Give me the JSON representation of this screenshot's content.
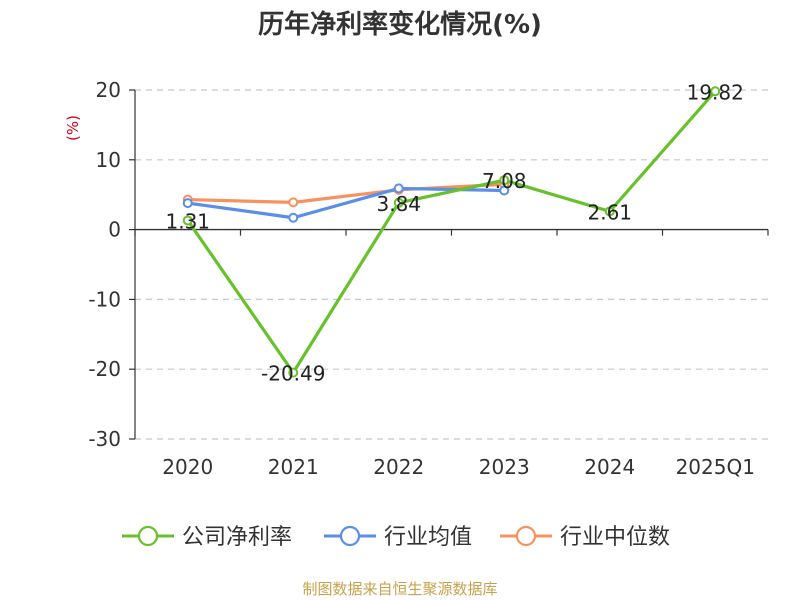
{
  "title": "历年净利率变化情况(%)",
  "source": "制图数据来自恒生聚源数据库",
  "chart_data": {
    "type": "line",
    "title": "历年净利率变化情况(%)",
    "ylabel": "(%)",
    "xlabel": "",
    "categories": [
      "2020",
      "2021",
      "2022",
      "2023",
      "2024",
      "2025Q1"
    ],
    "ylim": [
      -30,
      20
    ],
    "yticks": [
      20,
      10,
      0,
      -10,
      -20,
      -30
    ],
    "grid": true,
    "legend_position": "bottom",
    "series": [
      {
        "name": "公司净利率",
        "color": "#66c12a",
        "values": [
          1.31,
          -20.49,
          3.84,
          7.08,
          2.61,
          19.82
        ],
        "data_labels": [
          "1.31",
          "-20.49",
          "3.84",
          "7.08",
          "2.61",
          "19.82"
        ]
      },
      {
        "name": "行业均值",
        "color": "#5b8ee6",
        "values": [
          3.8,
          1.7,
          5.9,
          5.6,
          null,
          null
        ]
      },
      {
        "name": "行业中位数",
        "color": "#f5925e",
        "values": [
          4.3,
          3.9,
          5.7,
          6.5,
          null,
          null
        ]
      }
    ]
  }
}
